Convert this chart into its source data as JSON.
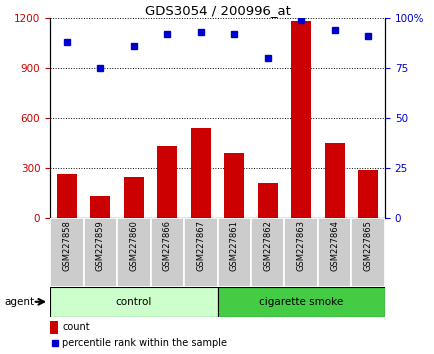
{
  "title": "GDS3054 / 200996_at",
  "samples": [
    "GSM227858",
    "GSM227859",
    "GSM227860",
    "GSM227866",
    "GSM227867",
    "GSM227861",
    "GSM227862",
    "GSM227863",
    "GSM227864",
    "GSM227865"
  ],
  "counts": [
    260,
    130,
    245,
    430,
    540,
    390,
    210,
    1180,
    450,
    285
  ],
  "percentiles": [
    88,
    75,
    86,
    92,
    93,
    92,
    80,
    99,
    94,
    91
  ],
  "control_indices": [
    0,
    1,
    2,
    3,
    4
  ],
  "smoke_indices": [
    5,
    6,
    7,
    8,
    9
  ],
  "control_label": "control",
  "smoke_label": "cigarette smoke",
  "agent_label": "agent",
  "bar_color": "#cc0000",
  "dot_color": "#0000cc",
  "left_axis_color": "#cc0000",
  "right_axis_color": "#0000cc",
  "ylim_left": [
    0,
    1200
  ],
  "ylim_right": [
    0,
    100
  ],
  "yticks_left": [
    0,
    300,
    600,
    900,
    1200
  ],
  "yticks_right": [
    0,
    25,
    50,
    75,
    100
  ],
  "control_bg_light": "#ccffcc",
  "smoke_bg_dark": "#44cc44",
  "xticklabel_bg": "#cccccc",
  "legend_count_label": "count",
  "legend_pct_label": "percentile rank within the sample",
  "fig_bg": "#ffffff"
}
